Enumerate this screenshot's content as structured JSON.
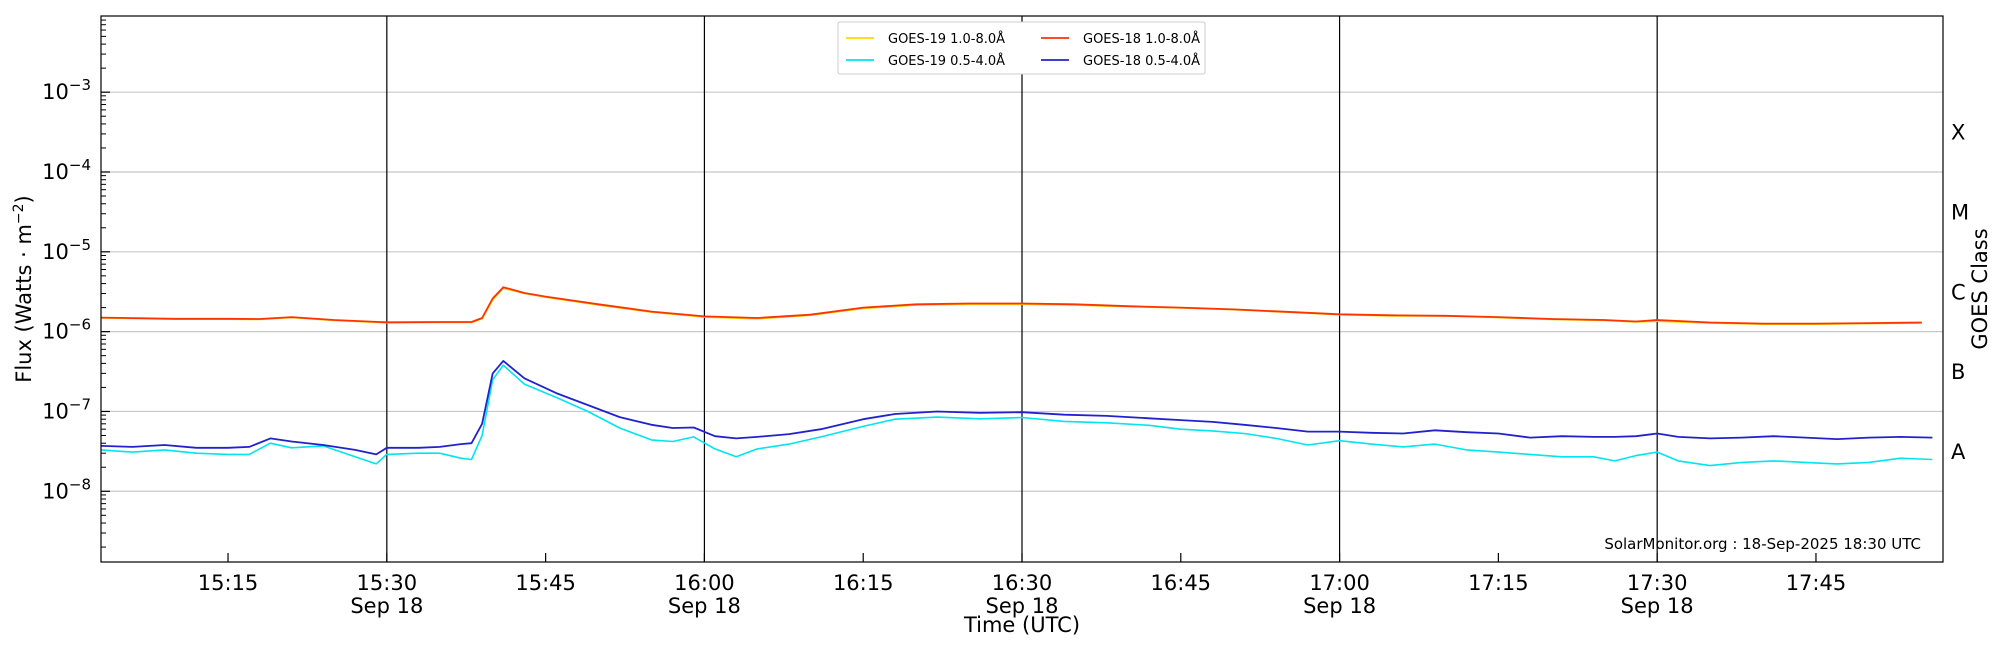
{
  "chart_data": {
    "type": "line",
    "xlabel": "Time (UTC)",
    "ylabel": "Flux (Watts · m",
    "ylabel_exp": "−2",
    "ylabel_close": ")",
    "right_label": "GOES Class",
    "y_scale": "log",
    "ylim": [
      1.3e-09,
      0.009
    ],
    "xlim": [
      "15:03",
      "17:57"
    ],
    "grid": "horizontal at decades",
    "legend_position": "top-center",
    "credit": "SolarMonitor.org : 18-Sep-2025 18:30 UTC",
    "date_label": "Sep 18",
    "x_ticks": [
      "15:15",
      "15:30",
      "15:45",
      "16:00",
      "16:15",
      "16:30",
      "16:45",
      "17:00",
      "17:15",
      "17:30",
      "17:45"
    ],
    "x_ticks_with_date": [
      "15:30",
      "16:00",
      "16:30",
      "17:00",
      "17:30"
    ],
    "vertical_lines": [
      "15:30",
      "16:00",
      "16:30",
      "17:00",
      "17:30"
    ],
    "y_ticks": [
      {
        "value": 1e-08,
        "base": "10",
        "exp": "−8"
      },
      {
        "value": 1e-07,
        "base": "10",
        "exp": "−7"
      },
      {
        "value": 1e-06,
        "base": "10",
        "exp": "−6"
      },
      {
        "value": 1e-05,
        "base": "10",
        "exp": "−5"
      },
      {
        "value": 0.0001,
        "base": "10",
        "exp": "−4"
      },
      {
        "value": 0.001,
        "base": "10",
        "exp": "−3"
      }
    ],
    "goes_classes": [
      {
        "letter": "A",
        "value": 3.2e-08
      },
      {
        "letter": "B",
        "value": 3.2e-07
      },
      {
        "letter": "C",
        "value": 3.2e-06
      },
      {
        "letter": "M",
        "value": 3.2e-05
      },
      {
        "letter": "X",
        "value": 0.00032
      }
    ],
    "series": [
      {
        "name": "GOES-19 1.0-8.0Å",
        "color": "#ffd700",
        "points": [
          [
            "15:03",
            1.48e-06
          ],
          [
            "15:10",
            1.43e-06
          ],
          [
            "15:15",
            1.43e-06
          ],
          [
            "15:18",
            1.42e-06
          ],
          [
            "15:21",
            1.5e-06
          ],
          [
            "15:25",
            1.38e-06
          ],
          [
            "15:30",
            1.29e-06
          ],
          [
            "15:35",
            1.3e-06
          ],
          [
            "15:38",
            1.3e-06
          ],
          [
            "15:39",
            1.45e-06
          ],
          [
            "15:40",
            2.5e-06
          ],
          [
            "15:41",
            3.5e-06
          ],
          [
            "15:43",
            3e-06
          ],
          [
            "15:45",
            2.7e-06
          ],
          [
            "15:50",
            2.15e-06
          ],
          [
            "15:55",
            1.75e-06
          ],
          [
            "16:00",
            1.52e-06
          ],
          [
            "16:05",
            1.45e-06
          ],
          [
            "16:10",
            1.6e-06
          ],
          [
            "16:15",
            1.95e-06
          ],
          [
            "16:20",
            2.15e-06
          ],
          [
            "16:25",
            2.2e-06
          ],
          [
            "16:30",
            2.2e-06
          ],
          [
            "16:35",
            2.15e-06
          ],
          [
            "16:40",
            2.05e-06
          ],
          [
            "16:45",
            1.98e-06
          ],
          [
            "16:50",
            1.88e-06
          ],
          [
            "16:55",
            1.75e-06
          ],
          [
            "17:00",
            1.63e-06
          ],
          [
            "17:05",
            1.57e-06
          ],
          [
            "17:10",
            1.57e-06
          ],
          [
            "17:15",
            1.5e-06
          ],
          [
            "17:20",
            1.42e-06
          ],
          [
            "17:25",
            1.38e-06
          ],
          [
            "17:28",
            1.32e-06
          ],
          [
            "17:30",
            1.35e-06
          ],
          [
            "17:35",
            1.28e-06
          ],
          [
            "17:40",
            1.24e-06
          ],
          [
            "17:45",
            1.24e-06
          ],
          [
            "17:50",
            1.26e-06
          ],
          [
            "17:55",
            1.28e-06
          ]
        ]
      },
      {
        "name": "GOES-18 1.0-8.0Å",
        "color": "#ff3300",
        "points": [
          [
            "15:03",
            1.5e-06
          ],
          [
            "15:10",
            1.45e-06
          ],
          [
            "15:15",
            1.45e-06
          ],
          [
            "15:18",
            1.44e-06
          ],
          [
            "15:21",
            1.52e-06
          ],
          [
            "15:25",
            1.4e-06
          ],
          [
            "15:30",
            1.31e-06
          ],
          [
            "15:35",
            1.32e-06
          ],
          [
            "15:38",
            1.32e-06
          ],
          [
            "15:39",
            1.48e-06
          ],
          [
            "15:40",
            2.6e-06
          ],
          [
            "15:41",
            3.6e-06
          ],
          [
            "15:43",
            3.05e-06
          ],
          [
            "15:45",
            2.75e-06
          ],
          [
            "15:50",
            2.2e-06
          ],
          [
            "15:55",
            1.78e-06
          ],
          [
            "16:00",
            1.55e-06
          ],
          [
            "16:05",
            1.48e-06
          ],
          [
            "16:10",
            1.63e-06
          ],
          [
            "16:15",
            2e-06
          ],
          [
            "16:20",
            2.2e-06
          ],
          [
            "16:25",
            2.25e-06
          ],
          [
            "16:30",
            2.25e-06
          ],
          [
            "16:35",
            2.2e-06
          ],
          [
            "16:40",
            2.08e-06
          ],
          [
            "16:45",
            2e-06
          ],
          [
            "16:50",
            1.9e-06
          ],
          [
            "16:55",
            1.77e-06
          ],
          [
            "17:00",
            1.65e-06
          ],
          [
            "17:05",
            1.6e-06
          ],
          [
            "17:10",
            1.58e-06
          ],
          [
            "17:15",
            1.52e-06
          ],
          [
            "17:20",
            1.44e-06
          ],
          [
            "17:25",
            1.4e-06
          ],
          [
            "17:28",
            1.34e-06
          ],
          [
            "17:30",
            1.4e-06
          ],
          [
            "17:35",
            1.3e-06
          ],
          [
            "17:40",
            1.26e-06
          ],
          [
            "17:45",
            1.26e-06
          ],
          [
            "17:50",
            1.28e-06
          ],
          [
            "17:55",
            1.3e-06
          ]
        ]
      },
      {
        "name": "GOES-19 0.5-4.0Å",
        "color": "#00e5ee",
        "points": [
          [
            "15:03",
            3.3e-08
          ],
          [
            "15:06",
            3.1e-08
          ],
          [
            "15:09",
            3.3e-08
          ],
          [
            "15:12",
            3e-08
          ],
          [
            "15:15",
            2.9e-08
          ],
          [
            "15:17",
            2.9e-08
          ],
          [
            "15:19",
            4e-08
          ],
          [
            "15:21",
            3.5e-08
          ],
          [
            "15:24",
            3.7e-08
          ],
          [
            "15:27",
            2.7e-08
          ],
          [
            "15:29",
            2.2e-08
          ],
          [
            "15:30",
            2.9e-08
          ],
          [
            "15:33",
            3e-08
          ],
          [
            "15:35",
            3e-08
          ],
          [
            "15:37",
            2.6e-08
          ],
          [
            "15:38",
            2.5e-08
          ],
          [
            "15:39",
            5e-08
          ],
          [
            "15:40",
            2.5e-07
          ],
          [
            "15:41",
            3.8e-07
          ],
          [
            "15:43",
            2.2e-07
          ],
          [
            "15:46",
            1.5e-07
          ],
          [
            "15:49",
            1e-07
          ],
          [
            "15:52",
            6.2e-08
          ],
          [
            "15:55",
            4.4e-08
          ],
          [
            "15:57",
            4.2e-08
          ],
          [
            "15:59",
            4.8e-08
          ],
          [
            "16:01",
            3.4e-08
          ],
          [
            "16:03",
            2.7e-08
          ],
          [
            "16:05",
            3.4e-08
          ],
          [
            "16:08",
            3.9e-08
          ],
          [
            "16:11",
            4.8e-08
          ],
          [
            "16:15",
            6.5e-08
          ],
          [
            "16:18",
            8e-08
          ],
          [
            "16:22",
            8.5e-08
          ],
          [
            "16:26",
            8.1e-08
          ],
          [
            "16:30",
            8.4e-08
          ],
          [
            "16:34",
            7.5e-08
          ],
          [
            "16:38",
            7.2e-08
          ],
          [
            "16:42",
            6.7e-08
          ],
          [
            "16:45",
            6e-08
          ],
          [
            "16:48",
            5.7e-08
          ],
          [
            "16:51",
            5.3e-08
          ],
          [
            "16:54",
            4.6e-08
          ],
          [
            "16:57",
            3.8e-08
          ],
          [
            "17:00",
            4.3e-08
          ],
          [
            "17:03",
            3.9e-08
          ],
          [
            "17:06",
            3.6e-08
          ],
          [
            "17:09",
            3.9e-08
          ],
          [
            "17:12",
            3.3e-08
          ],
          [
            "17:15",
            3.1e-08
          ],
          [
            "17:18",
            2.9e-08
          ],
          [
            "17:21",
            2.7e-08
          ],
          [
            "17:24",
            2.7e-08
          ],
          [
            "17:26",
            2.4e-08
          ],
          [
            "17:28",
            2.8e-08
          ],
          [
            "17:30",
            3.1e-08
          ],
          [
            "17:32",
            2.4e-08
          ],
          [
            "17:35",
            2.1e-08
          ],
          [
            "17:38",
            2.3e-08
          ],
          [
            "17:41",
            2.4e-08
          ],
          [
            "17:44",
            2.3e-08
          ],
          [
            "17:47",
            2.2e-08
          ],
          [
            "17:50",
            2.3e-08
          ],
          [
            "17:53",
            2.6e-08
          ],
          [
            "17:56",
            2.5e-08
          ]
        ]
      },
      {
        "name": "GOES-18 0.5-4.0Å",
        "color": "#2222cc",
        "points": [
          [
            "15:03",
            3.7e-08
          ],
          [
            "15:06",
            3.6e-08
          ],
          [
            "15:09",
            3.8e-08
          ],
          [
            "15:12",
            3.5e-08
          ],
          [
            "15:15",
            3.5e-08
          ],
          [
            "15:17",
            3.6e-08
          ],
          [
            "15:19",
            4.6e-08
          ],
          [
            "15:21",
            4.2e-08
          ],
          [
            "15:24",
            3.8e-08
          ],
          [
            "15:27",
            3.3e-08
          ],
          [
            "15:29",
            2.9e-08
          ],
          [
            "15:30",
            3.5e-08
          ],
          [
            "15:33",
            3.5e-08
          ],
          [
            "15:35",
            3.6e-08
          ],
          [
            "15:37",
            3.9e-08
          ],
          [
            "15:38",
            4e-08
          ],
          [
            "15:39",
            7e-08
          ],
          [
            "15:40",
            3e-07
          ],
          [
            "15:41",
            4.3e-07
          ],
          [
            "15:43",
            2.6e-07
          ],
          [
            "15:46",
            1.7e-07
          ],
          [
            "15:49",
            1.2e-07
          ],
          [
            "15:52",
            8.5e-08
          ],
          [
            "15:55",
            6.8e-08
          ],
          [
            "15:57",
            6.2e-08
          ],
          [
            "15:59",
            6.3e-08
          ],
          [
            "16:01",
            4.9e-08
          ],
          [
            "16:03",
            4.6e-08
          ],
          [
            "16:05",
            4.8e-08
          ],
          [
            "16:08",
            5.2e-08
          ],
          [
            "16:11",
            6e-08
          ],
          [
            "16:15",
            8e-08
          ],
          [
            "16:18",
            9.3e-08
          ],
          [
            "16:22",
            1e-07
          ],
          [
            "16:26",
            9.6e-08
          ],
          [
            "16:30",
            9.8e-08
          ],
          [
            "16:34",
            9.1e-08
          ],
          [
            "16:38",
            8.8e-08
          ],
          [
            "16:42",
            8.2e-08
          ],
          [
            "16:45",
            7.8e-08
          ],
          [
            "16:48",
            7.4e-08
          ],
          [
            "16:51",
            6.8e-08
          ],
          [
            "16:54",
            6.2e-08
          ],
          [
            "16:57",
            5.6e-08
          ],
          [
            "17:00",
            5.6e-08
          ],
          [
            "17:03",
            5.4e-08
          ],
          [
            "17:06",
            5.3e-08
          ],
          [
            "17:09",
            5.8e-08
          ],
          [
            "17:12",
            5.5e-08
          ],
          [
            "17:15",
            5.3e-08
          ],
          [
            "17:18",
            4.7e-08
          ],
          [
            "17:21",
            4.9e-08
          ],
          [
            "17:24",
            4.8e-08
          ],
          [
            "17:26",
            4.8e-08
          ],
          [
            "17:28",
            4.9e-08
          ],
          [
            "17:30",
            5.3e-08
          ],
          [
            "17:32",
            4.8e-08
          ],
          [
            "17:35",
            4.6e-08
          ],
          [
            "17:38",
            4.7e-08
          ],
          [
            "17:41",
            4.9e-08
          ],
          [
            "17:44",
            4.7e-08
          ],
          [
            "17:47",
            4.5e-08
          ],
          [
            "17:50",
            4.7e-08
          ],
          [
            "17:53",
            4.8e-08
          ],
          [
            "17:56",
            4.7e-08
          ]
        ]
      }
    ],
    "legend_layout": [
      "GOES-19 1.0-8.0Å",
      "GOES-19 0.5-4.0Å",
      "GOES-18 1.0-8.0Å",
      "GOES-18 0.5-4.0Å"
    ]
  }
}
